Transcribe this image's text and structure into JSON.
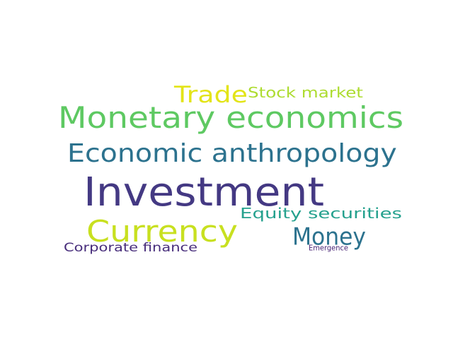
{
  "words": [
    {
      "text": "Investment",
      "color": "#443983"
    },
    {
      "text": "Monetary economics",
      "color": "#5ec962"
    },
    {
      "text": "Economic anthropology",
      "color": "#2c728e"
    },
    {
      "text": "Currency",
      "color": "#c8e020"
    },
    {
      "text": "Money",
      "color": "#2c728e"
    },
    {
      "text": "Trade",
      "color": "#e3e418"
    },
    {
      "text": "Stock market",
      "color": "#addc30"
    },
    {
      "text": "Equity securities",
      "color": "#25a18e"
    },
    {
      "text": "Corporate finance",
      "color": "#472d7b"
    },
    {
      "text": "Emergence",
      "color": "#482475"
    }
  ]
}
